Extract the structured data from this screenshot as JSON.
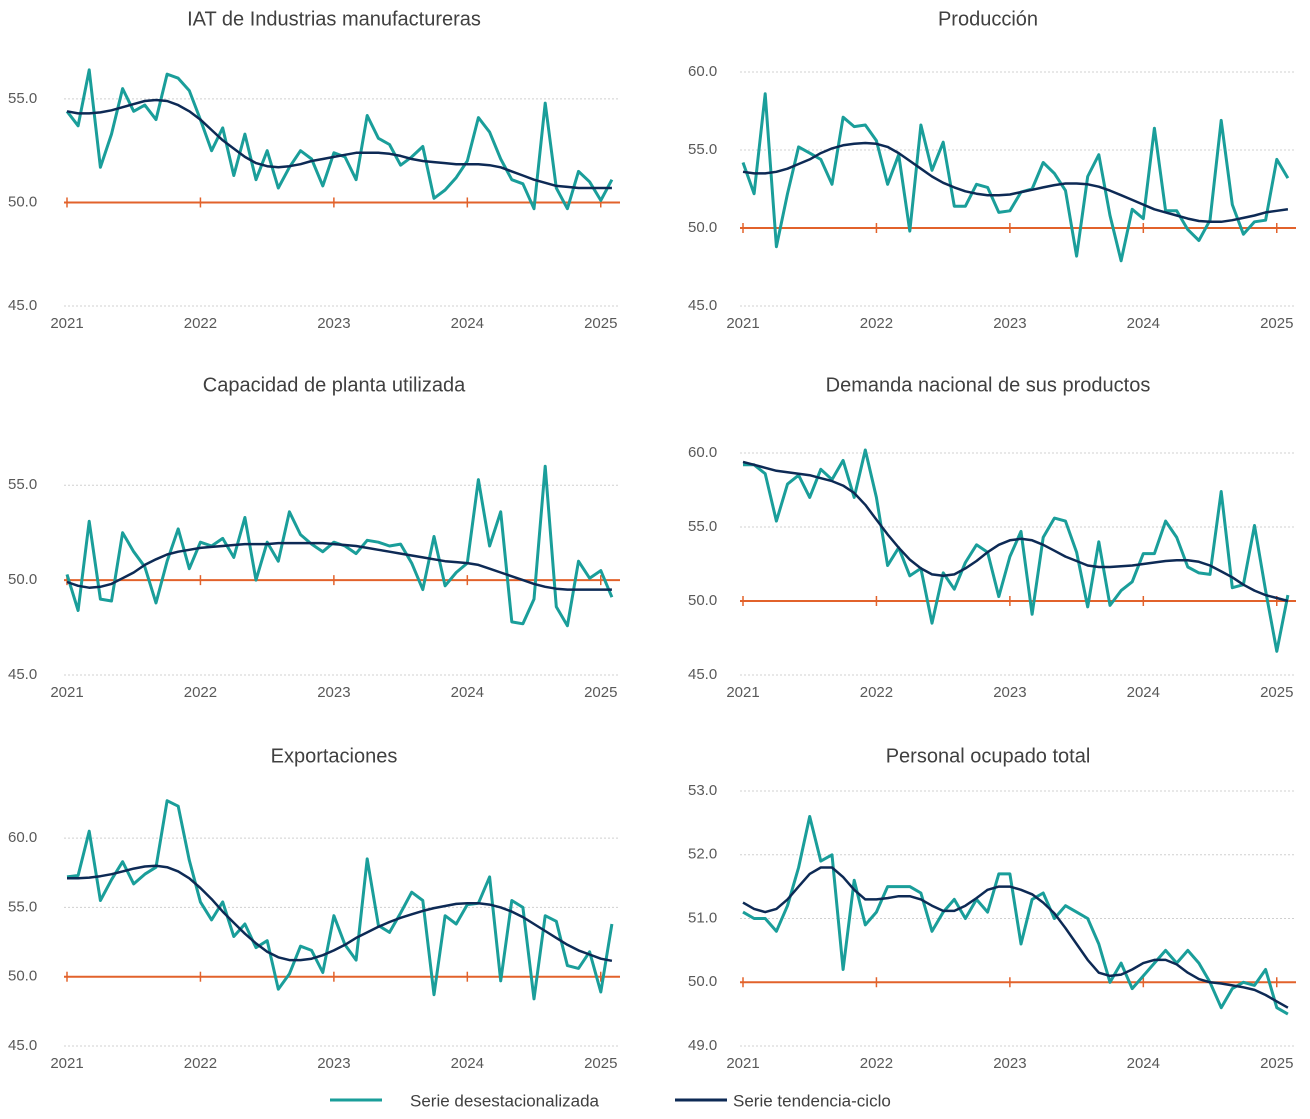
{
  "chart_data": [
    {
      "type": "line",
      "title": "IAT de Industrias manufactureras",
      "categories": [
        "2021",
        null,
        null,
        null,
        null,
        null,
        null,
        null,
        null,
        null,
        null,
        null,
        "2022",
        null,
        null,
        null,
        null,
        null,
        null,
        null,
        null,
        null,
        null,
        null,
        "2023",
        null,
        null,
        null,
        null,
        null,
        null,
        null,
        null,
        null,
        null,
        null,
        "2024",
        null,
        null,
        null,
        null,
        null,
        null,
        null,
        null,
        null,
        null,
        null,
        "2025",
        null
      ],
      "ylim": [
        45,
        56.3
      ],
      "yticks": [
        {
          "value": 45,
          "label": "45.0"
        },
        {
          "value": 50,
          "label": "50.0"
        },
        {
          "value": 55,
          "label": "55.0"
        }
      ],
      "grid": true,
      "reference_line": {
        "value": 50,
        "color": "#e2622b"
      },
      "series": [
        {
          "name": "Serie desestacionalizada",
          "color": "#1a9e9a",
          "values": [
            54.4,
            53.7,
            56.4,
            51.7,
            53.3,
            55.5,
            54.4,
            54.7,
            54.0,
            56.2,
            56.0,
            55.4,
            54.0,
            52.5,
            53.6,
            51.3,
            53.3,
            51.1,
            52.5,
            50.7,
            51.7,
            52.5,
            52.1,
            50.8,
            52.4,
            52.2,
            51.1,
            54.2,
            53.1,
            52.8,
            51.8,
            52.2,
            52.7,
            50.2,
            50.6,
            51.2,
            52.0,
            54.1,
            53.4,
            52.1,
            51.1,
            50.9,
            49.7,
            54.8,
            50.7,
            49.7,
            51.5,
            51.0,
            50.1,
            51.1
          ]
        },
        {
          "name": "Serie tendencia-ciclo",
          "color": "#0d2a55",
          "values": [
            54.4,
            54.3,
            54.3,
            54.35,
            54.45,
            54.6,
            54.75,
            54.9,
            54.95,
            54.9,
            54.7,
            54.4,
            54.0,
            53.5,
            53.0,
            52.6,
            52.2,
            51.9,
            51.75,
            51.7,
            51.75,
            51.85,
            52.0,
            52.1,
            52.2,
            52.3,
            52.4,
            52.4,
            52.4,
            52.35,
            52.25,
            52.1,
            52.0,
            51.95,
            51.9,
            51.85,
            51.85,
            51.85,
            51.8,
            51.7,
            51.5,
            51.3,
            51.1,
            50.95,
            50.8,
            50.75,
            50.7,
            50.7,
            50.7,
            50.7
          ]
        }
      ]
    },
    {
      "type": "line",
      "title": "Producción",
      "categories": [
        "2021",
        null,
        null,
        null,
        null,
        null,
        null,
        null,
        null,
        null,
        null,
        null,
        "2022",
        null,
        null,
        null,
        null,
        null,
        null,
        null,
        null,
        null,
        null,
        null,
        "2023",
        null,
        null,
        null,
        null,
        null,
        null,
        null,
        null,
        null,
        null,
        null,
        "2024",
        null,
        null,
        null,
        null,
        null,
        null,
        null,
        null,
        null,
        null,
        null,
        "2025",
        null
      ],
      "ylim": [
        45,
        60
      ],
      "yticks": [
        {
          "value": 45,
          "label": "45.0"
        },
        {
          "value": 50,
          "label": "50.0"
        },
        {
          "value": 55,
          "label": "55.0"
        },
        {
          "value": 60,
          "label": "60.0"
        }
      ],
      "grid": true,
      "reference_line": {
        "value": 50,
        "color": "#e2622b"
      },
      "series": [
        {
          "color": "#1a9e9a",
          "values": [
            54.2,
            52.2,
            58.6,
            48.8,
            52.2,
            55.2,
            54.8,
            54.4,
            52.8,
            57.1,
            56.5,
            56.6,
            55.6,
            52.8,
            54.7,
            49.8,
            56.6,
            53.7,
            55.5,
            51.4,
            51.4,
            52.8,
            52.6,
            51.0,
            51.1,
            52.3,
            52.5,
            54.2,
            53.5,
            52.4,
            48.2,
            53.3,
            54.7,
            50.8,
            47.9,
            51.2,
            50.6,
            56.4,
            51.1,
            51.1,
            49.9,
            49.2,
            50.5,
            56.9,
            51.5,
            49.6,
            50.4,
            50.5,
            54.4,
            53.2
          ]
        },
        {
          "color": "#0d2a55",
          "values": [
            53.6,
            53.5,
            53.5,
            53.6,
            53.8,
            54.1,
            54.4,
            54.8,
            55.1,
            55.3,
            55.4,
            55.45,
            55.4,
            55.2,
            54.8,
            54.3,
            53.8,
            53.3,
            52.9,
            52.6,
            52.35,
            52.2,
            52.1,
            52.1,
            52.15,
            52.3,
            52.45,
            52.6,
            52.75,
            52.85,
            52.85,
            52.8,
            52.65,
            52.4,
            52.1,
            51.8,
            51.5,
            51.2,
            51.0,
            50.8,
            50.6,
            50.45,
            50.4,
            50.4,
            50.5,
            50.65,
            50.8,
            51.0,
            51.1,
            51.2
          ]
        }
      ]
    },
    {
      "type": "line",
      "title": "Capacidad de planta utilizada",
      "categories": [
        "2021",
        null,
        null,
        null,
        null,
        null,
        null,
        null,
        null,
        null,
        null,
        null,
        "2022",
        null,
        null,
        null,
        null,
        null,
        null,
        null,
        null,
        null,
        null,
        null,
        "2023",
        null,
        null,
        null,
        null,
        null,
        null,
        null,
        null,
        null,
        null,
        null,
        "2024",
        null,
        null,
        null,
        null,
        null,
        null,
        null,
        null,
        null,
        null,
        null,
        "2025",
        null
      ],
      "ylim": [
        45,
        56.7
      ],
      "yticks": [
        {
          "value": 45,
          "label": "45.0"
        },
        {
          "value": 50,
          "label": "50.0"
        },
        {
          "value": 55,
          "label": "55.0"
        }
      ],
      "grid": true,
      "reference_line": {
        "value": 50,
        "color": "#e2622b"
      },
      "series": [
        {
          "color": "#1a9e9a",
          "values": [
            50.3,
            48.4,
            53.1,
            49.0,
            48.9,
            52.5,
            51.5,
            50.7,
            48.8,
            51.0,
            52.7,
            50.6,
            52.0,
            51.8,
            52.2,
            51.2,
            53.3,
            50.0,
            52.0,
            51.0,
            53.6,
            52.4,
            51.9,
            51.5,
            52.0,
            51.8,
            51.4,
            52.1,
            52.0,
            51.8,
            51.9,
            50.9,
            49.5,
            52.3,
            49.7,
            50.4,
            50.9,
            55.3,
            51.8,
            53.6,
            47.8,
            47.7,
            49.0,
            56.0,
            48.6,
            47.6,
            51.0,
            50.1,
            50.5,
            49.1
          ]
        },
        {
          "color": "#0d2a55",
          "values": [
            49.9,
            49.7,
            49.6,
            49.65,
            49.8,
            50.1,
            50.4,
            50.8,
            51.1,
            51.35,
            51.5,
            51.6,
            51.7,
            51.75,
            51.8,
            51.85,
            51.9,
            51.9,
            51.9,
            51.95,
            51.95,
            51.95,
            51.95,
            51.95,
            51.9,
            51.85,
            51.8,
            51.7,
            51.6,
            51.5,
            51.4,
            51.3,
            51.2,
            51.1,
            51.0,
            50.95,
            50.9,
            50.8,
            50.6,
            50.4,
            50.2,
            50.0,
            49.8,
            49.65,
            49.55,
            49.5,
            49.5,
            49.5,
            49.5,
            49.5
          ]
        }
      ]
    },
    {
      "type": "line",
      "title": "Demanda nacional de sus productos",
      "categories": [
        "2021",
        null,
        null,
        null,
        null,
        null,
        null,
        null,
        null,
        null,
        null,
        null,
        "2022",
        null,
        null,
        null,
        null,
        null,
        null,
        null,
        null,
        null,
        null,
        null,
        "2023",
        null,
        null,
        null,
        null,
        null,
        null,
        null,
        null,
        null,
        null,
        null,
        "2024",
        null,
        null,
        null,
        null,
        null,
        null,
        null,
        null,
        null,
        null,
        null,
        "2025",
        null
      ],
      "ylim": [
        45,
        60
      ],
      "yticks": [
        {
          "value": 45,
          "label": "45.0"
        },
        {
          "value": 50,
          "label": "50.0"
        },
        {
          "value": 55,
          "label": "55.0"
        },
        {
          "value": 60,
          "label": "60.0"
        }
      ],
      "grid": true,
      "reference_line": {
        "value": 50,
        "color": "#e2622b"
      },
      "series": [
        {
          "color": "#1a9e9a",
          "values": [
            59.2,
            59.2,
            58.6,
            55.4,
            57.9,
            58.5,
            57.0,
            58.9,
            58.2,
            59.5,
            57.0,
            60.2,
            57.0,
            52.4,
            53.6,
            51.7,
            52.2,
            48.5,
            51.9,
            50.8,
            52.6,
            53.8,
            53.3,
            50.3,
            53.0,
            54.7,
            49.1,
            54.3,
            55.6,
            55.4,
            53.3,
            49.6,
            54.0,
            49.7,
            50.7,
            51.3,
            53.2,
            53.2,
            55.4,
            54.3,
            52.3,
            51.9,
            51.8,
            57.4,
            50.9,
            51.1,
            55.1,
            50.7,
            46.6,
            50.4
          ]
        },
        {
          "color": "#0d2a55",
          "values": [
            59.4,
            59.2,
            59.0,
            58.8,
            58.7,
            58.6,
            58.5,
            58.3,
            58.1,
            57.8,
            57.3,
            56.5,
            55.5,
            54.5,
            53.6,
            52.8,
            52.2,
            51.8,
            51.7,
            51.8,
            52.2,
            52.7,
            53.3,
            53.8,
            54.1,
            54.2,
            54.1,
            53.8,
            53.4,
            53.0,
            52.7,
            52.4,
            52.3,
            52.3,
            52.35,
            52.4,
            52.5,
            52.6,
            52.7,
            52.75,
            52.75,
            52.65,
            52.4,
            52.0,
            51.6,
            51.1,
            50.7,
            50.4,
            50.2,
            50.0
          ]
        }
      ]
    },
    {
      "type": "line",
      "title": "Exportaciones",
      "categories": [
        "2021",
        null,
        null,
        null,
        null,
        null,
        null,
        null,
        null,
        null,
        null,
        null,
        "2022",
        null,
        null,
        null,
        null,
        null,
        null,
        null,
        null,
        null,
        null,
        null,
        "2023",
        null,
        null,
        null,
        null,
        null,
        null,
        null,
        null,
        null,
        null,
        null,
        "2024",
        null,
        null,
        null,
        null,
        null,
        null,
        null,
        null,
        null,
        null,
        null,
        "2025",
        null
      ],
      "ylim": [
        45,
        63.4
      ],
      "yticks": [
        {
          "value": 45,
          "label": "45.0"
        },
        {
          "value": 50,
          "label": "50.0"
        },
        {
          "value": 55,
          "label": "55.0"
        },
        {
          "value": 60,
          "label": "60.0"
        }
      ],
      "grid": true,
      "reference_line": {
        "value": 50,
        "color": "#e2622b"
      },
      "series": [
        {
          "color": "#1a9e9a",
          "values": [
            57.2,
            57.3,
            60.5,
            55.5,
            57.0,
            58.3,
            56.7,
            57.4,
            57.9,
            62.7,
            62.3,
            58.4,
            55.4,
            54.1,
            55.4,
            52.9,
            53.8,
            52.1,
            52.6,
            49.1,
            50.2,
            52.2,
            51.9,
            50.3,
            54.4,
            52.3,
            51.2,
            58.5,
            53.7,
            53.2,
            54.6,
            56.1,
            55.5,
            48.7,
            54.4,
            53.8,
            55.2,
            55.3,
            57.2,
            49.7,
            55.5,
            55.0,
            48.4,
            54.4,
            54.0,
            50.8,
            50.6,
            51.8,
            48.9,
            53.8
          ]
        },
        {
          "color": "#0d2a55",
          "values": [
            57.1,
            57.1,
            57.15,
            57.25,
            57.4,
            57.6,
            57.8,
            57.95,
            58.0,
            57.9,
            57.6,
            57.1,
            56.4,
            55.6,
            54.7,
            53.9,
            53.1,
            52.4,
            51.8,
            51.4,
            51.2,
            51.2,
            51.3,
            51.55,
            51.9,
            52.3,
            52.8,
            53.2,
            53.6,
            53.95,
            54.25,
            54.5,
            54.75,
            54.95,
            55.1,
            55.25,
            55.3,
            55.3,
            55.2,
            55.0,
            54.7,
            54.3,
            53.8,
            53.3,
            52.8,
            52.3,
            51.9,
            51.6,
            51.3,
            51.15
          ]
        }
      ]
    },
    {
      "type": "line",
      "title": "Personal ocupado total",
      "categories": [
        "2021",
        null,
        null,
        null,
        null,
        null,
        null,
        null,
        null,
        null,
        null,
        null,
        "2022",
        null,
        null,
        null,
        null,
        null,
        null,
        null,
        null,
        null,
        null,
        null,
        "2023",
        null,
        null,
        null,
        null,
        null,
        null,
        null,
        null,
        null,
        null,
        null,
        "2024",
        null,
        null,
        null,
        null,
        null,
        null,
        null,
        null,
        null,
        null,
        null,
        "2025",
        null
      ],
      "ylim": [
        49,
        53
      ],
      "yticks": [
        {
          "value": 49,
          "label": "49.0"
        },
        {
          "value": 50,
          "label": "50.0"
        },
        {
          "value": 51,
          "label": "51.0"
        },
        {
          "value": 52,
          "label": "52.0"
        },
        {
          "value": 53,
          "label": "53.0"
        }
      ],
      "grid": true,
      "reference_line": {
        "value": 50,
        "color": "#e2622b"
      },
      "series": [
        {
          "color": "#1a9e9a",
          "values": [
            51.1,
            51.0,
            51.0,
            50.8,
            51.2,
            51.8,
            52.6,
            51.9,
            52.0,
            50.2,
            51.6,
            50.9,
            51.1,
            51.5,
            51.5,
            51.5,
            51.4,
            50.8,
            51.1,
            51.3,
            51.0,
            51.3,
            51.1,
            51.7,
            51.7,
            50.6,
            51.3,
            51.4,
            51.0,
            51.2,
            51.1,
            51.0,
            50.6,
            50.0,
            50.3,
            49.9,
            50.1,
            50.3,
            50.5,
            50.3,
            50.5,
            50.3,
            50.0,
            49.6,
            49.9,
            50.0,
            49.95,
            50.2,
            49.6,
            49.5
          ]
        },
        {
          "color": "#0d2a55",
          "values": [
            51.25,
            51.15,
            51.1,
            51.15,
            51.3,
            51.5,
            51.7,
            51.8,
            51.8,
            51.65,
            51.45,
            51.3,
            51.3,
            51.32,
            51.35,
            51.35,
            51.3,
            51.2,
            51.12,
            51.12,
            51.2,
            51.32,
            51.45,
            51.5,
            51.5,
            51.45,
            51.38,
            51.25,
            51.08,
            50.85,
            50.6,
            50.35,
            50.15,
            50.1,
            50.12,
            50.2,
            50.3,
            50.35,
            50.35,
            50.28,
            50.15,
            50.05,
            50.0,
            49.98,
            49.95,
            49.92,
            49.88,
            49.8,
            49.7,
            49.6
          ]
        }
      ]
    }
  ]
}
